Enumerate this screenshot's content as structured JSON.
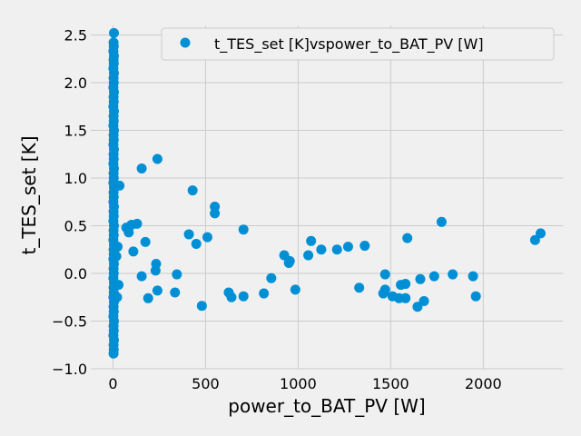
{
  "chart_data": {
    "type": "scatter",
    "title": "",
    "xlabel": "power_to_BAT_PV [W]",
    "ylabel": "t_TES_set [K]",
    "xlim": [
      -120,
      2430
    ],
    "ylim": [
      -1.0,
      2.6
    ],
    "x_ticks": [
      0,
      500,
      1000,
      1500,
      2000
    ],
    "x_tick_labels": [
      "0",
      "500",
      "1000",
      "1500",
      "2000"
    ],
    "y_ticks": [
      -1.0,
      -0.5,
      0.0,
      0.5,
      1.0,
      1.5,
      2.0,
      2.5
    ],
    "y_tick_labels": [
      "−1.0",
      "−0.5",
      "0.0",
      "0.5",
      "1.0",
      "1.5",
      "2.0",
      "2.5"
    ],
    "grid": true,
    "legend_position": "top-right",
    "marker_color": "#008fd5",
    "series": [
      {
        "name": "t_TES_set [K]vspower_to_BAT_PV [W]",
        "points": [
          [
            5,
            2.52
          ],
          [
            3,
            2.42
          ],
          [
            4,
            2.38
          ],
          [
            2,
            2.33
          ],
          [
            5,
            2.28
          ],
          [
            3,
            2.24
          ],
          [
            4,
            2.2
          ],
          [
            2,
            2.15
          ],
          [
            5,
            2.1
          ],
          [
            3,
            2.05
          ],
          [
            4,
            2.0
          ],
          [
            2,
            1.95
          ],
          [
            5,
            1.9
          ],
          [
            3,
            1.85
          ],
          [
            4,
            1.8
          ],
          [
            2,
            1.75
          ],
          [
            5,
            1.7
          ],
          [
            3,
            1.65
          ],
          [
            4,
            1.6
          ],
          [
            2,
            1.55
          ],
          [
            5,
            1.5
          ],
          [
            3,
            1.45
          ],
          [
            4,
            1.4
          ],
          [
            2,
            1.35
          ],
          [
            5,
            1.3
          ],
          [
            3,
            1.25
          ],
          [
            4,
            1.2
          ],
          [
            2,
            1.15
          ],
          [
            5,
            1.1
          ],
          [
            3,
            1.05
          ],
          [
            4,
            1.0
          ],
          [
            2,
            0.95
          ],
          [
            5,
            0.9
          ],
          [
            3,
            0.85
          ],
          [
            4,
            0.8
          ],
          [
            2,
            0.75
          ],
          [
            5,
            0.7
          ],
          [
            3,
            0.65
          ],
          [
            4,
            0.6
          ],
          [
            2,
            0.55
          ],
          [
            5,
            0.5
          ],
          [
            3,
            0.45
          ],
          [
            4,
            0.4
          ],
          [
            2,
            0.35
          ],
          [
            5,
            0.3
          ],
          [
            3,
            0.25
          ],
          [
            4,
            0.2
          ],
          [
            2,
            0.15
          ],
          [
            5,
            0.1
          ],
          [
            3,
            0.05
          ],
          [
            4,
            0.0
          ],
          [
            2,
            -0.05
          ],
          [
            5,
            -0.1
          ],
          [
            3,
            -0.15
          ],
          [
            4,
            -0.2
          ],
          [
            2,
            -0.25
          ],
          [
            5,
            -0.3
          ],
          [
            3,
            -0.35
          ],
          [
            4,
            -0.4
          ],
          [
            2,
            -0.45
          ],
          [
            5,
            -0.5
          ],
          [
            3,
            -0.55
          ],
          [
            4,
            -0.6
          ],
          [
            2,
            -0.65
          ],
          [
            5,
            -0.7
          ],
          [
            3,
            -0.75
          ],
          [
            4,
            -0.8
          ],
          [
            3,
            -0.84
          ],
          [
            18,
            0.18
          ],
          [
            22,
            -0.25
          ],
          [
            25,
            0.28
          ],
          [
            30,
            -0.12
          ],
          [
            35,
            0.92
          ],
          [
            72,
            0.48
          ],
          [
            85,
            0.43
          ],
          [
            100,
            0.51
          ],
          [
            110,
            0.23
          ],
          [
            130,
            0.52
          ],
          [
            155,
            1.1
          ],
          [
            155,
            -0.03
          ],
          [
            175,
            0.33
          ],
          [
            190,
            -0.26
          ],
          [
            230,
            0.03
          ],
          [
            233,
            0.1
          ],
          [
            240,
            1.2
          ],
          [
            240,
            -0.18
          ],
          [
            335,
            -0.2
          ],
          [
            345,
            -0.01
          ],
          [
            410,
            0.41
          ],
          [
            430,
            0.87
          ],
          [
            450,
            0.31
          ],
          [
            480,
            -0.34
          ],
          [
            510,
            0.38
          ],
          [
            550,
            0.7
          ],
          [
            550,
            0.63
          ],
          [
            625,
            -0.2
          ],
          [
            640,
            -0.25
          ],
          [
            705,
            0.46
          ],
          [
            705,
            -0.24
          ],
          [
            815,
            -0.21
          ],
          [
            855,
            -0.05
          ],
          [
            925,
            0.19
          ],
          [
            950,
            0.11
          ],
          [
            955,
            0.13
          ],
          [
            985,
            -0.17
          ],
          [
            1055,
            0.19
          ],
          [
            1070,
            0.34
          ],
          [
            1125,
            0.25
          ],
          [
            1210,
            0.25
          ],
          [
            1270,
            0.28
          ],
          [
            1330,
            -0.15
          ],
          [
            1360,
            0.29
          ],
          [
            1460,
            -0.21
          ],
          [
            1470,
            -0.17
          ],
          [
            1470,
            -0.01
          ],
          [
            1510,
            -0.24
          ],
          [
            1545,
            -0.26
          ],
          [
            1555,
            -0.12
          ],
          [
            1580,
            -0.11
          ],
          [
            1580,
            -0.26
          ],
          [
            1590,
            0.37
          ],
          [
            1645,
            -0.35
          ],
          [
            1660,
            -0.06
          ],
          [
            1680,
            -0.29
          ],
          [
            1735,
            -0.03
          ],
          [
            1775,
            0.54
          ],
          [
            1835,
            -0.01
          ],
          [
            1945,
            -0.03
          ],
          [
            1960,
            -0.24
          ],
          [
            2280,
            0.35
          ],
          [
            2310,
            0.42
          ]
        ]
      }
    ]
  }
}
